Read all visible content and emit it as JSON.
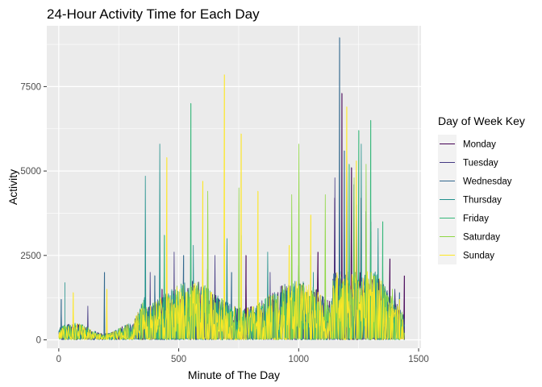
{
  "chart_data": {
    "type": "line",
    "title": "24-Hour Activity Time for Each Day",
    "xlabel": "Minute of The Day",
    "ylabel": "Activity",
    "xlim": [
      -50,
      1510
    ],
    "ylim": [
      -250,
      9300
    ],
    "x_ticks": [
      0,
      500,
      1000,
      1500
    ],
    "x_tick_labels": [
      "0",
      "500",
      "1000",
      "1500"
    ],
    "y_ticks": [
      0,
      2500,
      5000,
      7500
    ],
    "y_tick_labels": [
      "0",
      "2500",
      "5000",
      "7500"
    ],
    "grid": true,
    "legend": {
      "title": "Day of Week Key",
      "position": "right"
    },
    "series": [
      {
        "name": "Monday",
        "color": "#440154",
        "peaks": [
          [
            430,
            1500
          ],
          [
            620,
            2100
          ],
          [
            780,
            2500
          ],
          [
            930,
            1600
          ],
          [
            1080,
            2600
          ],
          [
            1150,
            4200
          ],
          [
            1180,
            7300
          ],
          [
            1220,
            5100
          ],
          [
            1260,
            4200
          ],
          [
            1300,
            3500
          ],
          [
            1380,
            2400
          ],
          [
            1440,
            1900
          ]
        ]
      },
      {
        "name": "Tuesday",
        "color": "#443A83",
        "peaks": [
          [
            120,
            1000
          ],
          [
            380,
            2000
          ],
          [
            480,
            2600
          ],
          [
            650,
            2500
          ],
          [
            880,
            2000
          ],
          [
            1150,
            4800
          ],
          [
            1200,
            5500
          ],
          [
            1240,
            4000
          ],
          [
            1300,
            3200
          ],
          [
            1400,
            1500
          ]
        ]
      },
      {
        "name": "Wednesday",
        "color": "#31688E",
        "peaks": [
          [
            10,
            1200
          ],
          [
            190,
            2000
          ],
          [
            400,
            1900
          ],
          [
            520,
            2500
          ],
          [
            720,
            2000
          ],
          [
            1000,
            2200
          ],
          [
            1170,
            8950
          ],
          [
            1190,
            5600
          ],
          [
            1230,
            4600
          ],
          [
            1280,
            3800
          ],
          [
            1420,
            1400
          ]
        ]
      },
      {
        "name": "Thursday",
        "color": "#21908C",
        "peaks": [
          [
            25,
            1700
          ],
          [
            360,
            4850
          ],
          [
            420,
            5800
          ],
          [
            560,
            2800
          ],
          [
            700,
            3000
          ],
          [
            870,
            2600
          ],
          [
            1060,
            2000
          ],
          [
            1200,
            5200
          ],
          [
            1260,
            5800
          ],
          [
            1330,
            3300
          ]
        ]
      },
      {
        "name": "Friday",
        "color": "#35B779",
        "peaks": [
          [
            440,
            3100
          ],
          [
            550,
            7000
          ],
          [
            760,
            3100
          ],
          [
            1050,
            2500
          ],
          [
            1210,
            5200
          ],
          [
            1250,
            6200
          ],
          [
            1300,
            6500
          ],
          [
            1350,
            3500
          ]
        ]
      },
      {
        "name": "Saturday",
        "color": "#8FD744",
        "peaks": [
          [
            620,
            4400
          ],
          [
            750,
            4500
          ],
          [
            970,
            4300
          ],
          [
            1000,
            5800
          ],
          [
            1110,
            4300
          ],
          [
            1230,
            4800
          ],
          [
            1280,
            5200
          ],
          [
            1390,
            1500
          ]
        ]
      },
      {
        "name": "Sunday",
        "color": "#FDE725",
        "peaks": [
          [
            60,
            1400
          ],
          [
            200,
            1500
          ],
          [
            450,
            5400
          ],
          [
            600,
            4700
          ],
          [
            690,
            7850
          ],
          [
            760,
            6100
          ],
          [
            830,
            4400
          ],
          [
            960,
            2800
          ],
          [
            1050,
            3700
          ],
          [
            1200,
            6900
          ],
          [
            1240,
            5300
          ],
          [
            1420,
            1200
          ]
        ]
      }
    ]
  }
}
